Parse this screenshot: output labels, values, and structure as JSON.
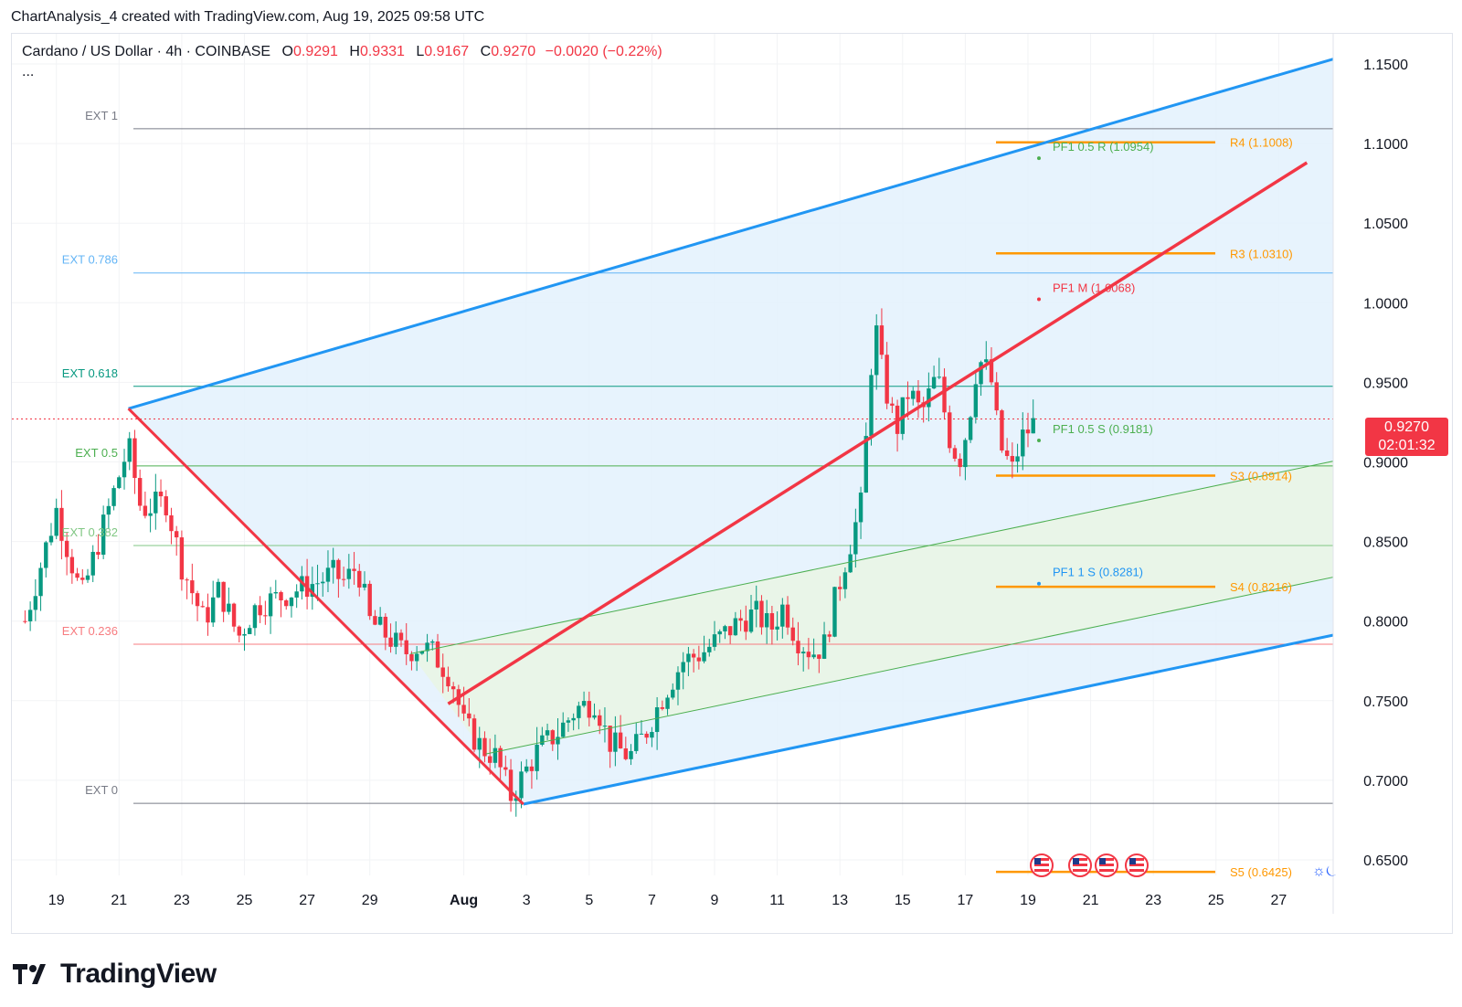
{
  "caption": "ChartAnalysis_4 created with TradingView.com, Aug 19, 2025 09:58 UTC",
  "legend": {
    "symbol": "Cardano / US Dollar · 4h · COINBASE",
    "open_label": "O",
    "open": "0.9291",
    "high_label": "H",
    "high": "0.9331",
    "low_label": "L",
    "low": "0.9167",
    "close_label": "C",
    "close": "0.9270",
    "change": "−0.0020 (−0.22%)",
    "more": "..."
  },
  "price_badge": {
    "price": "0.9270",
    "countdown": "02:01:32"
  },
  "brand": {
    "name": "TradingView"
  },
  "session_icons": "☼⏾",
  "colors": {
    "up": "#089981",
    "down": "#f23645",
    "channel_blue": "#2196f3",
    "median_red": "#f23645",
    "inner_green": "#4caf50",
    "pivot_orange": "#ff9800",
    "fill_blue": "#e3f1fd",
    "fill_green": "#e9f5e6"
  },
  "chart_data": {
    "type": "candlestick",
    "title": "Cardano / US Dollar · 4h · COINBASE",
    "ylim": [
      0.635,
      1.17
    ],
    "y_ticks": [
      "1.1500",
      "1.1000",
      "1.0500",
      "1.0000",
      "0.9500",
      "0.9000",
      "0.8500",
      "0.8000",
      "0.7500",
      "0.7000",
      "0.6500"
    ],
    "x_ticks": [
      {
        "label": "19",
        "day": -12
      },
      {
        "label": "21",
        "day": -10
      },
      {
        "label": "23",
        "day": -8
      },
      {
        "label": "25",
        "day": -6
      },
      {
        "label": "27",
        "day": -4
      },
      {
        "label": "29",
        "day": -2
      },
      {
        "label": "Aug",
        "day": 1
      },
      {
        "label": "3",
        "day": 3
      },
      {
        "label": "5",
        "day": 5
      },
      {
        "label": "7",
        "day": 7
      },
      {
        "label": "9",
        "day": 9
      },
      {
        "label": "11",
        "day": 11
      },
      {
        "label": "13",
        "day": 13
      },
      {
        "label": "15",
        "day": 15
      },
      {
        "label": "17",
        "day": 17
      },
      {
        "label": "19",
        "day": 19
      },
      {
        "label": "21",
        "day": 21
      },
      {
        "label": "23",
        "day": 23
      },
      {
        "label": "25",
        "day": 25
      },
      {
        "label": "27",
        "day": 27
      }
    ],
    "x_axis_note": "day = day of August 2025 (negative/zero values are July dates)",
    "close_path": [
      [
        -13.0,
        0.8
      ],
      [
        -12.0,
        0.87
      ],
      [
        -11.2,
        0.815
      ],
      [
        -10.5,
        0.86
      ],
      [
        -9.7,
        0.91
      ],
      [
        -9.3,
        0.87
      ],
      [
        -8.5,
        0.875
      ],
      [
        -8.0,
        0.835
      ],
      [
        -7.3,
        0.8
      ],
      [
        -6.8,
        0.82
      ],
      [
        -6.2,
        0.79
      ],
      [
        -5.6,
        0.81
      ],
      [
        -4.9,
        0.815
      ],
      [
        -4.3,
        0.82
      ],
      [
        -3.6,
        0.825
      ],
      [
        -3.2,
        0.83
      ],
      [
        -2.8,
        0.825
      ],
      [
        -2.4,
        0.835
      ],
      [
        -2.0,
        0.8
      ],
      [
        -1.4,
        0.79
      ],
      [
        -0.9,
        0.78
      ],
      [
        -0.4,
        0.785
      ],
      [
        0.0,
        0.78
      ],
      [
        0.6,
        0.765
      ],
      [
        1.0,
        0.735
      ],
      [
        1.6,
        0.72
      ],
      [
        2.0,
        0.715
      ],
      [
        2.5,
        0.69
      ],
      [
        2.8,
        0.7
      ],
      [
        3.4,
        0.72
      ],
      [
        4.0,
        0.73
      ],
      [
        4.6,
        0.745
      ],
      [
        5.2,
        0.75
      ],
      [
        5.6,
        0.725
      ],
      [
        5.9,
        0.72
      ],
      [
        6.3,
        0.715
      ],
      [
        6.8,
        0.73
      ],
      [
        7.4,
        0.755
      ],
      [
        8.0,
        0.775
      ],
      [
        8.6,
        0.78
      ],
      [
        9.2,
        0.79
      ],
      [
        9.8,
        0.8
      ],
      [
        10.3,
        0.805
      ],
      [
        10.8,
        0.795
      ],
      [
        11.2,
        0.81
      ],
      [
        11.6,
        0.79
      ],
      [
        12.1,
        0.78
      ],
      [
        12.5,
        0.785
      ],
      [
        12.8,
        0.81
      ],
      [
        13.2,
        0.84
      ],
      [
        13.7,
        0.875
      ],
      [
        14.1,
        0.99
      ],
      [
        14.4,
        0.95
      ],
      [
        14.8,
        0.92
      ],
      [
        15.2,
        0.945
      ],
      [
        15.6,
        0.93
      ],
      [
        16.1,
        0.955
      ],
      [
        16.5,
        0.915
      ],
      [
        16.8,
        0.9
      ],
      [
        17.1,
        0.925
      ],
      [
        17.4,
        0.965
      ],
      [
        17.8,
        0.955
      ],
      [
        18.1,
        0.91
      ],
      [
        18.5,
        0.895
      ],
      [
        18.8,
        0.915
      ],
      [
        19.3,
        0.927
      ]
    ],
    "fib_levels": [
      {
        "label": "EXT 1",
        "value": 1.1093
      },
      {
        "label": "EXT 0.786",
        "value": 1.0187
      },
      {
        "label": "EXT 0.618",
        "value": 0.9475
      },
      {
        "label": "EXT 0.5",
        "value": 0.8975
      },
      {
        "label": "EXT 0.382",
        "value": 0.8475
      },
      {
        "label": "EXT 0.236",
        "value": 0.7855
      },
      {
        "label": "EXT 0",
        "value": 0.6855
      }
    ],
    "pivot_levels": [
      {
        "label": "R4 (1.1008)",
        "value": 1.1008
      },
      {
        "label": "R3 (1.0310)",
        "value": 1.031
      },
      {
        "label": "S3 (0.8914)",
        "value": 0.8914
      },
      {
        "label": "S4 (0.8216)",
        "value": 0.8216
      },
      {
        "label": "S5 (0.6425)",
        "value": 0.6425
      }
    ],
    "pitchfork_labels": [
      {
        "label": "PF1 0.5 R (1.0954)",
        "value": 1.0954
      },
      {
        "label": "PF1 M (1.0068)",
        "value": 1.0068
      },
      {
        "label": "PF1 0.5 S (0.9181)",
        "value": 0.9181
      },
      {
        "label": "PF1 1 S (0.8281)",
        "value": 0.8281
      }
    ],
    "pitchfork": {
      "pivots": [
        [
          -9.7,
          0.9335
        ],
        [
          -1.9,
          0.811
        ],
        [
          2.9,
          0.685
        ]
      ],
      "median_end": [
        27.9,
        1.088
      ]
    },
    "last_price": 0.927
  }
}
